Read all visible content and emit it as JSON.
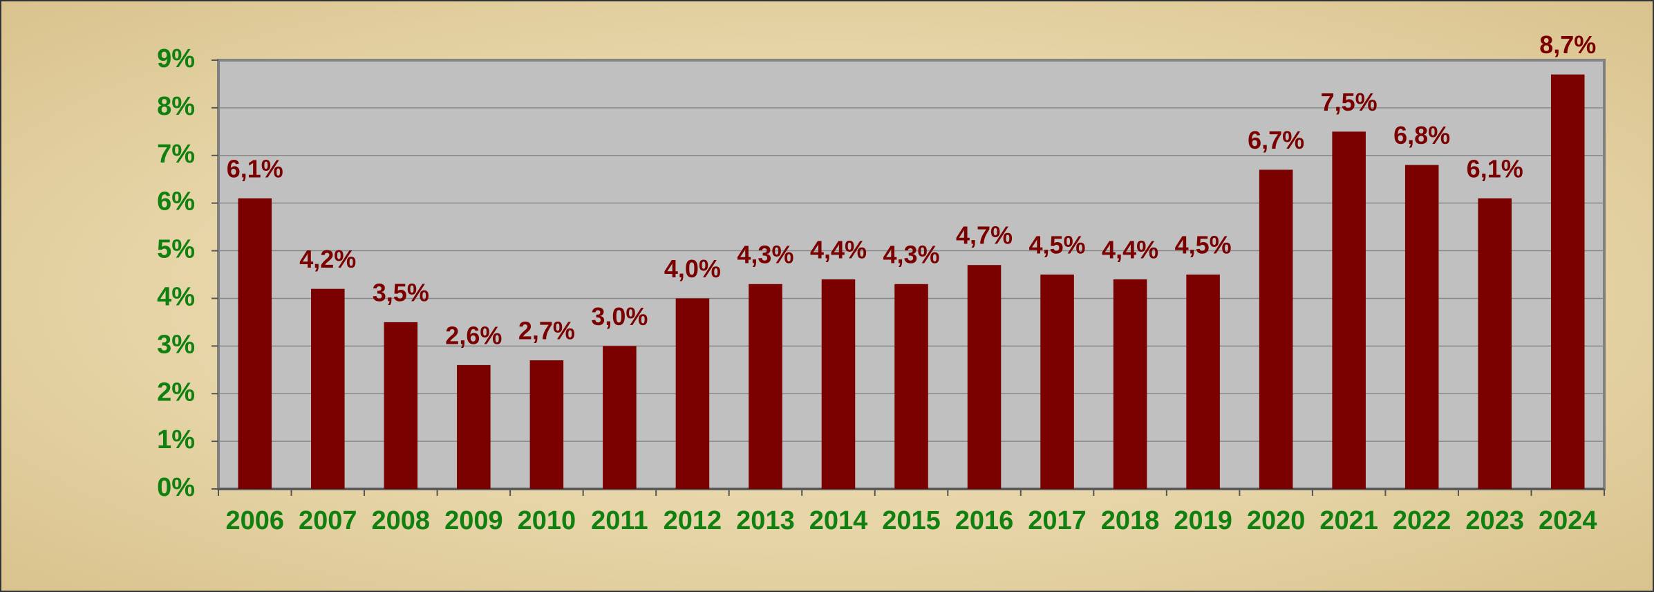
{
  "chart_data": {
    "type": "bar",
    "categories": [
      "2006",
      "2007",
      "2008",
      "2009",
      "2010",
      "2011",
      "2012",
      "2013",
      "2014",
      "2015",
      "2016",
      "2017",
      "2018",
      "2019",
      "2020",
      "2021",
      "2022",
      "2023",
      "2024"
    ],
    "values": [
      6.1,
      4.2,
      3.5,
      2.6,
      2.7,
      3.0,
      4.0,
      4.3,
      4.4,
      4.3,
      4.7,
      4.5,
      4.4,
      4.5,
      6.7,
      7.5,
      6.8,
      6.1,
      8.7
    ],
    "value_labels": [
      "6,1%",
      "4,2%",
      "3,5%",
      "2,6%",
      "2,7%",
      "3,0%",
      "4,0%",
      "4,3%",
      "4,4%",
      "4,3%",
      "4,7%",
      "4,5%",
      "4,4%",
      "4,5%",
      "6,7%",
      "7,5%",
      "6,8%",
      "6,1%",
      "8,7%"
    ],
    "color": "#7b0000",
    "ylim": [
      0,
      9
    ],
    "yticks": [
      {
        "value": 0,
        "label": "0%"
      },
      {
        "value": 1,
        "label": "1%"
      },
      {
        "value": 2,
        "label": "2%"
      },
      {
        "value": 3,
        "label": "3%"
      },
      {
        "value": 4,
        "label": "4%"
      },
      {
        "value": 5,
        "label": "5%"
      },
      {
        "value": 6,
        "label": "6%"
      },
      {
        "value": 7,
        "label": "7%"
      },
      {
        "value": 8,
        "label": "8%"
      },
      {
        "value": 9,
        "label": "9%"
      }
    ],
    "grid": true
  }
}
